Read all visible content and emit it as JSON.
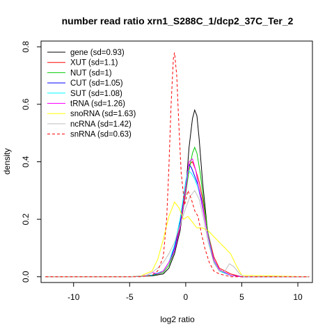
{
  "chart_data": {
    "type": "line",
    "title": "number read ratio xrn1_S288C_1/dcp2_37C_Ter_2",
    "xlabel": "log2 ratio",
    "ylabel": "density",
    "xlim": [
      -12.9,
      11.3
    ],
    "ylim": [
      -0.02,
      0.82
    ],
    "xticks": [
      -10,
      -5,
      0,
      5,
      10
    ],
    "yticks": [
      0.0,
      0.2,
      0.4,
      0.6,
      0.8
    ],
    "xtick_labels": [
      "-10",
      "-5",
      "0",
      "5",
      "10"
    ],
    "ytick_labels": [
      "0.0",
      "0.2",
      "0.4",
      "0.6",
      "0.8"
    ],
    "grid": false,
    "legend_position": "top-left",
    "series": [
      {
        "name": "gene (sd=0.93)",
        "color": "#000000",
        "dash": false,
        "x": [
          -12.5,
          -5,
          -3,
          -2,
          -1.5,
          -1,
          -0.5,
          0,
          0.3,
          0.6,
          0.8,
          1.0,
          1.2,
          1.5,
          2,
          2.5,
          3,
          4,
          5,
          11
        ],
        "y": [
          0,
          0,
          0.003,
          0.01,
          0.03,
          0.08,
          0.16,
          0.3,
          0.45,
          0.55,
          0.58,
          0.56,
          0.48,
          0.33,
          0.14,
          0.05,
          0.02,
          0.005,
          0,
          0
        ]
      },
      {
        "name": "XUT (sd=1.1)",
        "color": "#ff0000",
        "dash": false,
        "x": [
          -12.5,
          -5,
          -3,
          -2,
          -1.5,
          -1,
          -0.5,
          0,
          0.3,
          0.6,
          0.9,
          1.2,
          1.5,
          2,
          2.5,
          3,
          4,
          5,
          11
        ],
        "y": [
          0,
          0,
          0.005,
          0.02,
          0.05,
          0.1,
          0.18,
          0.31,
          0.39,
          0.4,
          0.37,
          0.33,
          0.27,
          0.15,
          0.07,
          0.03,
          0.01,
          0,
          0
        ]
      },
      {
        "name": "NUT (sd=1)",
        "color": "#00cc00",
        "dash": false,
        "x": [
          -12.5,
          -5,
          -3,
          -2,
          -1.5,
          -1,
          -0.5,
          0,
          0.3,
          0.6,
          0.8,
          1.0,
          1.3,
          1.6,
          2,
          2.5,
          3,
          4,
          5,
          11
        ],
        "y": [
          0,
          0,
          0.004,
          0.015,
          0.04,
          0.09,
          0.17,
          0.29,
          0.37,
          0.43,
          0.45,
          0.43,
          0.36,
          0.26,
          0.15,
          0.06,
          0.025,
          0.005,
          0,
          0
        ]
      },
      {
        "name": "CUT (sd=1.05)",
        "color": "#0000ff",
        "dash": false,
        "x": [
          -12.5,
          -5,
          -3,
          -2,
          -1.5,
          -1,
          -0.5,
          0,
          0.3,
          0.5,
          0.8,
          1.1,
          1.4,
          1.8,
          2.2,
          2.6,
          3,
          4,
          5,
          11
        ],
        "y": [
          0,
          0,
          0.005,
          0.02,
          0.05,
          0.1,
          0.19,
          0.33,
          0.39,
          0.38,
          0.35,
          0.32,
          0.27,
          0.18,
          0.1,
          0.05,
          0.025,
          0.005,
          0,
          0
        ]
      },
      {
        "name": "SUT (sd=1.08)",
        "color": "#00ffff",
        "dash": false,
        "x": [
          -12.5,
          -5,
          -3,
          -2,
          -1.5,
          -1,
          -0.5,
          0,
          0.2,
          0.5,
          0.8,
          1.1,
          1.4,
          1.8,
          2.2,
          2.6,
          3,
          4,
          5,
          11
        ],
        "y": [
          0,
          0,
          0.006,
          0.02,
          0.05,
          0.11,
          0.2,
          0.33,
          0.37,
          0.36,
          0.34,
          0.31,
          0.26,
          0.18,
          0.1,
          0.05,
          0.02,
          0.005,
          0,
          0
        ]
      },
      {
        "name": "tRNA (sd=1.26)",
        "color": "#ff00ff",
        "dash": false,
        "x": [
          -12.5,
          -5,
          -3.5,
          -3,
          -2.5,
          -2,
          -1.5,
          -1,
          -0.5,
          0,
          0.3,
          0.6,
          0.9,
          1.2,
          1.5,
          2,
          2.5,
          3,
          4,
          5,
          11
        ],
        "y": [
          0,
          0,
          0.005,
          0.015,
          0.01,
          0.02,
          0.05,
          0.09,
          0.17,
          0.3,
          0.4,
          0.41,
          0.37,
          0.3,
          0.24,
          0.14,
          0.06,
          0.025,
          0.005,
          0,
          0
        ]
      },
      {
        "name": "snoRNA (sd=1.63)",
        "color": "#ffff00",
        "dash": false,
        "x": [
          -12.5,
          -5,
          -4,
          -3,
          -2.5,
          -2,
          -1.5,
          -1,
          -0.6,
          -0.2,
          0.2,
          0.6,
          1.0,
          1.5,
          2,
          2.5,
          3,
          3.5,
          4,
          4.5,
          5,
          11
        ],
        "y": [
          0,
          0,
          0.003,
          0.02,
          0.06,
          0.13,
          0.21,
          0.26,
          0.24,
          0.2,
          0.21,
          0.19,
          0.17,
          0.17,
          0.16,
          0.14,
          0.12,
          0.1,
          0.08,
          0.04,
          0.005,
          0
        ]
      },
      {
        "name": "ncRNA (sd=1.42)",
        "color": "#bebebe",
        "dash": false,
        "x": [
          -12.5,
          -5,
          -3.5,
          -3,
          -2.5,
          -2,
          -1.5,
          -1,
          -0.5,
          0,
          0.4,
          0.8,
          1.2,
          1.6,
          2,
          2.5,
          3,
          3.5,
          3.9,
          4.3,
          4.8,
          5.2,
          11
        ],
        "y": [
          0,
          0,
          0.004,
          0.015,
          0.03,
          0.05,
          0.08,
          0.12,
          0.18,
          0.24,
          0.28,
          0.3,
          0.27,
          0.2,
          0.12,
          0.05,
          0.02,
          0.02,
          0.045,
          0.035,
          0.01,
          0,
          0
        ]
      },
      {
        "name": "snRNA (sd=0.63)",
        "color": "#ff0000",
        "dash": true,
        "x": [
          -12.5,
          -4,
          -3,
          -2.5,
          -2,
          -1.7,
          -1.5,
          -1.3,
          -1.1,
          -1.0,
          -0.8,
          -0.6,
          -0.4,
          -0.1,
          0.2,
          0.5,
          0.8,
          1.1,
          1.4,
          1.7,
          2.1,
          2.5,
          3,
          4,
          11
        ],
        "y": [
          0,
          0,
          0.005,
          0.02,
          0.07,
          0.2,
          0.38,
          0.6,
          0.76,
          0.78,
          0.7,
          0.52,
          0.36,
          0.25,
          0.3,
          0.27,
          0.23,
          0.21,
          0.15,
          0.1,
          0.05,
          0.02,
          0.01,
          0,
          0
        ]
      }
    ]
  }
}
